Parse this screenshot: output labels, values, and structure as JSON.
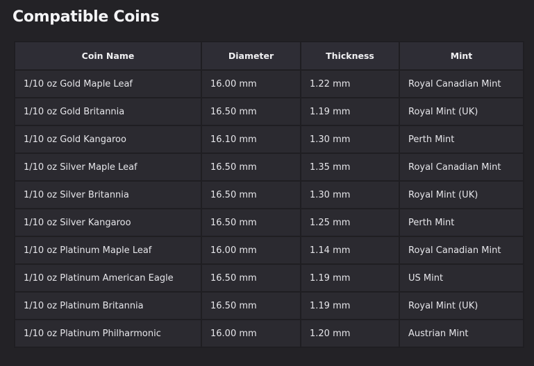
{
  "header": {
    "title": "Compatible Coins"
  },
  "table": {
    "columns": [
      "Coin Name",
      "Diameter",
      "Thickness",
      "Mint"
    ],
    "rows": [
      [
        "1/10 oz Gold Maple Leaf",
        "16.00 mm",
        "1.22 mm",
        "Royal Canadian Mint"
      ],
      [
        "1/10 oz Gold Britannia",
        "16.50 mm",
        "1.19 mm",
        "Royal Mint (UK)"
      ],
      [
        "1/10 oz Gold Kangaroo",
        "16.10 mm",
        "1.30 mm",
        "Perth Mint"
      ],
      [
        "1/10 oz Silver Maple Leaf",
        "16.50 mm",
        "1.35 mm",
        "Royal Canadian Mint"
      ],
      [
        "1/10 oz Silver Britannia",
        "16.50 mm",
        "1.30 mm",
        "Royal Mint (UK)"
      ],
      [
        "1/10 oz Silver Kangaroo",
        "16.50 mm",
        "1.25 mm",
        "Perth Mint"
      ],
      [
        "1/10 oz Platinum Maple Leaf",
        "16.00 mm",
        "1.14 mm",
        "Royal Canadian Mint"
      ],
      [
        "1/10 oz Platinum American Eagle",
        "16.50 mm",
        "1.19 mm",
        "US Mint"
      ],
      [
        "1/10 oz Platinum Britannia",
        "16.50 mm",
        "1.19 mm",
        "Royal Mint (UK)"
      ],
      [
        "1/10 oz Platinum Philharmonic",
        "16.00 mm",
        "1.20 mm",
        "Austrian Mint"
      ]
    ]
  }
}
